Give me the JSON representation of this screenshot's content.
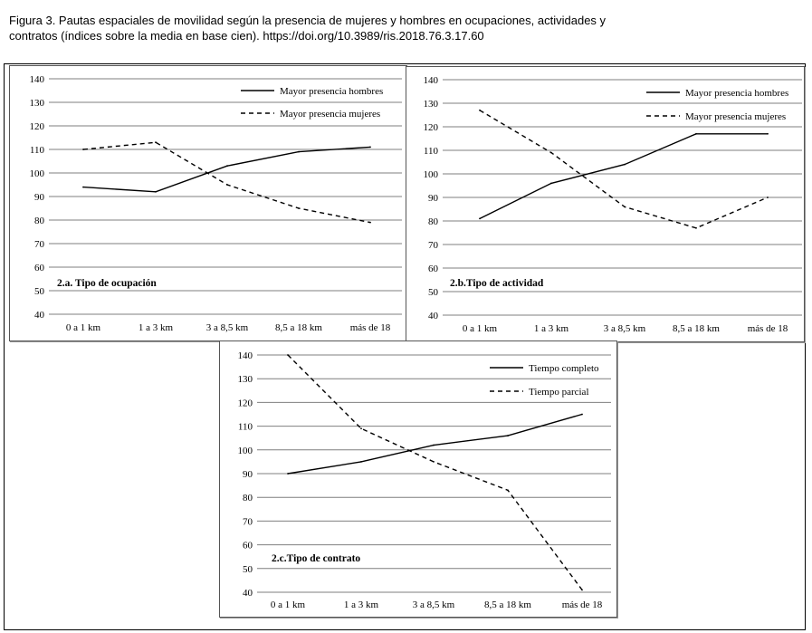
{
  "caption": {
    "line1": "Figura 3. Pautas espaciales de movilidad según la presencia de mujeres y hombres en ocupaciones, actividades y",
    "line2": "contratos (índices sobre la media en base cien). https://doi.org/10.3989/ris.2018.76.3.17.60"
  },
  "chart_data": [
    {
      "type": "line",
      "title": "2.a. Tipo de ocupación",
      "categories": [
        "0 a 1 km",
        "1 a 3 km",
        "3 a 8,5 km",
        "8,5 a 18 km",
        "más de 18"
      ],
      "ylim": [
        40,
        140
      ],
      "yticks": [
        "40",
        "50",
        "60",
        "70",
        "80",
        "90",
        "100",
        "110",
        "120",
        "130",
        "140"
      ],
      "grid": "horizontal",
      "legend": "top-right",
      "series": [
        {
          "name": "Mayor presencia hombres",
          "style": "solid",
          "values": [
            94,
            92,
            103,
            109,
            111
          ]
        },
        {
          "name": "Mayor presencia mujeres",
          "style": "dashed",
          "values": [
            110,
            113,
            95,
            85,
            79
          ]
        }
      ]
    },
    {
      "type": "line",
      "title": "2.b.Tipo de actividad",
      "categories": [
        "0 a 1 km",
        "1 a 3 km",
        "3 a 8,5 km",
        "8,5 a 18 km",
        "más de 18"
      ],
      "ylim": [
        40,
        140
      ],
      "yticks": [
        "40",
        "50",
        "60",
        "70",
        "80",
        "90",
        "100",
        "110",
        "120",
        "130",
        "140"
      ],
      "grid": "horizontal",
      "legend": "top-right",
      "series": [
        {
          "name": "Mayor presencia hombres",
          "style": "solid",
          "values": [
            81,
            96,
            104,
            117,
            117
          ]
        },
        {
          "name": "Mayor presencia mujeres",
          "style": "dashed",
          "values": [
            127,
            109,
            86,
            77,
            90
          ]
        }
      ]
    },
    {
      "type": "line",
      "title": "2.c.Tipo de contrato",
      "categories": [
        "0 a 1 km",
        "1 a 3 km",
        "3 a 8,5 km",
        "8,5 a 18 km",
        "más de 18"
      ],
      "ylim": [
        40,
        140
      ],
      "yticks": [
        "40",
        "50",
        "60",
        "70",
        "80",
        "90",
        "100",
        "110",
        "120",
        "130",
        "140"
      ],
      "grid": "horizontal",
      "legend": "top-right",
      "series": [
        {
          "name": "Tiempo completo",
          "style": "solid",
          "values": [
            90,
            95,
            102,
            106,
            115
          ]
        },
        {
          "name": "Tiempo parcial",
          "style": "dashed",
          "values": [
            140,
            109,
            95,
            83,
            41
          ]
        }
      ]
    }
  ]
}
